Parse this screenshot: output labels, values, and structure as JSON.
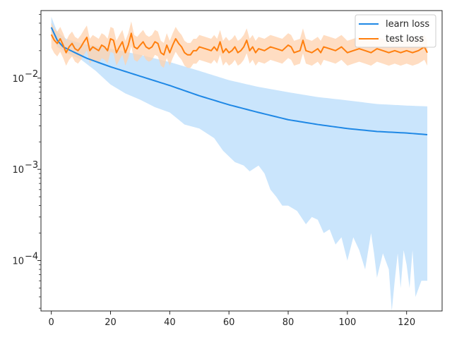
{
  "chart_data": {
    "type": "line",
    "title": "",
    "xlabel": "",
    "ylabel": "",
    "yscale": "log",
    "xlim": [
      -3.5,
      132
    ],
    "ylim": [
      2.8e-05,
      0.055
    ],
    "x_ticks": [
      0,
      20,
      40,
      60,
      80,
      100,
      120
    ],
    "x_tick_labels": [
      "0",
      "20",
      "40",
      "60",
      "80",
      "100",
      "120"
    ],
    "y_ticks": [
      0.0001,
      0.001,
      0.01
    ],
    "y_tick_labels": [
      "10",
      "10",
      "10"
    ],
    "y_tick_exponents": [
      "−4",
      "−3",
      "−2"
    ],
    "grid": false,
    "legend_position": "top-right",
    "x_range": [
      0,
      127
    ],
    "series": [
      {
        "name": "learn loss",
        "color": "#1f88e5",
        "band_color": "#9ecffa",
        "center_points": [
          [
            0,
            0.036
          ],
          [
            2,
            0.026
          ],
          [
            4,
            0.022
          ],
          [
            8,
            0.019
          ],
          [
            12,
            0.0165
          ],
          [
            16,
            0.0148
          ],
          [
            20,
            0.0133
          ],
          [
            30,
            0.0105
          ],
          [
            40,
            0.0083
          ],
          [
            50,
            0.0064
          ],
          [
            60,
            0.0051
          ],
          [
            70,
            0.0042
          ],
          [
            80,
            0.0035
          ],
          [
            90,
            0.0031
          ],
          [
            100,
            0.0028
          ],
          [
            110,
            0.0026
          ],
          [
            120,
            0.0025
          ],
          [
            127,
            0.0024
          ]
        ],
        "upper_points": [
          [
            0,
            0.047
          ],
          [
            2,
            0.032
          ],
          [
            5,
            0.027
          ],
          [
            10,
            0.024
          ],
          [
            20,
            0.021
          ],
          [
            30,
            0.018
          ],
          [
            40,
            0.015
          ],
          [
            50,
            0.012
          ],
          [
            60,
            0.0095
          ],
          [
            70,
            0.008
          ],
          [
            80,
            0.007
          ],
          [
            90,
            0.0062
          ],
          [
            100,
            0.0057
          ],
          [
            110,
            0.0052
          ],
          [
            120,
            0.005
          ],
          [
            127,
            0.0049
          ]
        ],
        "lower_points": [
          [
            0,
            0.03
          ],
          [
            2,
            0.022
          ],
          [
            5,
            0.019
          ],
          [
            10,
            0.016
          ],
          [
            15,
            0.012
          ],
          [
            20,
            0.0085
          ],
          [
            25,
            0.0068
          ],
          [
            30,
            0.0058
          ],
          [
            35,
            0.0048
          ],
          [
            40,
            0.0042
          ],
          [
            45,
            0.0031
          ],
          [
            50,
            0.0028
          ],
          [
            55,
            0.0022
          ],
          [
            58,
            0.0016
          ],
          [
            62,
            0.0012
          ],
          [
            65,
            0.0011
          ],
          [
            67,
            0.00095
          ],
          [
            70,
            0.0011
          ],
          [
            72,
            0.0009
          ],
          [
            74,
            0.0006
          ],
          [
            76,
            0.0005
          ],
          [
            78,
            0.0004
          ],
          [
            80,
            0.0004
          ],
          [
            83,
            0.00035
          ],
          [
            86,
            0.00025
          ],
          [
            88,
            0.0003
          ],
          [
            90,
            0.00028
          ],
          [
            92,
            0.0002
          ],
          [
            94,
            0.00022
          ],
          [
            96,
            0.00015
          ],
          [
            98,
            0.00018
          ],
          [
            100,
            0.0001
          ],
          [
            102,
            0.00018
          ],
          [
            104,
            0.00013
          ],
          [
            106,
            8e-05
          ],
          [
            108,
            0.0002
          ],
          [
            109,
            0.00012
          ],
          [
            110,
            6.5e-05
          ],
          [
            112,
            0.00012
          ],
          [
            114,
            8e-05
          ],
          [
            115,
            2.8e-05
          ],
          [
            116,
            6e-05
          ],
          [
            117,
            0.00012
          ],
          [
            118,
            5e-05
          ],
          [
            119,
            0.00013
          ],
          [
            120,
            9e-05
          ],
          [
            121,
            5e-05
          ],
          [
            122,
            0.00013
          ],
          [
            123,
            4e-05
          ],
          [
            125,
            6e-05
          ],
          [
            127,
            6e-05
          ]
        ]
      },
      {
        "name": "test loss",
        "color": "#ff7f0e",
        "band_color": "#ffd2ad",
        "center_points": [
          [
            0,
            0.03
          ],
          [
            1,
            0.026
          ],
          [
            2,
            0.024
          ],
          [
            3,
            0.027
          ],
          [
            4,
            0.023
          ],
          [
            5,
            0.019
          ],
          [
            6,
            0.022
          ],
          [
            7,
            0.024
          ],
          [
            8,
            0.021
          ],
          [
            9,
            0.02
          ],
          [
            10,
            0.022
          ],
          [
            11,
            0.025
          ],
          [
            12,
            0.028
          ],
          [
            13,
            0.02
          ],
          [
            14,
            0.022
          ],
          [
            15,
            0.021
          ],
          [
            16,
            0.02
          ],
          [
            17,
            0.023
          ],
          [
            18,
            0.022
          ],
          [
            19,
            0.02
          ],
          [
            20,
            0.027
          ],
          [
            21,
            0.026
          ],
          [
            22,
            0.019
          ],
          [
            23,
            0.022
          ],
          [
            24,
            0.025
          ],
          [
            25,
            0.019
          ],
          [
            26,
            0.023
          ],
          [
            27,
            0.031
          ],
          [
            28,
            0.022
          ],
          [
            29,
            0.021
          ],
          [
            30,
            0.023
          ],
          [
            31,
            0.025
          ],
          [
            32,
            0.022
          ],
          [
            33,
            0.021
          ],
          [
            34,
            0.022
          ],
          [
            35,
            0.025
          ],
          [
            36,
            0.024
          ],
          [
            37,
            0.019
          ],
          [
            38,
            0.018
          ],
          [
            39,
            0.023
          ],
          [
            40,
            0.019
          ],
          [
            41,
            0.023
          ],
          [
            42,
            0.027
          ],
          [
            43,
            0.024
          ],
          [
            44,
            0.022
          ],
          [
            45,
            0.019
          ],
          [
            46,
            0.018
          ],
          [
            47,
            0.018
          ],
          [
            48,
            0.02
          ],
          [
            49,
            0.02
          ],
          [
            50,
            0.022
          ],
          [
            52,
            0.021
          ],
          [
            54,
            0.02
          ],
          [
            55,
            0.022
          ],
          [
            56,
            0.02
          ],
          [
            57,
            0.025
          ],
          [
            58,
            0.019
          ],
          [
            59,
            0.021
          ],
          [
            60,
            0.019
          ],
          [
            61,
            0.02
          ],
          [
            62,
            0.022
          ],
          [
            63,
            0.019
          ],
          [
            64,
            0.02
          ],
          [
            65,
            0.022
          ],
          [
            66,
            0.026
          ],
          [
            67,
            0.02
          ],
          [
            68,
            0.022
          ],
          [
            69,
            0.019
          ],
          [
            70,
            0.021
          ],
          [
            72,
            0.02
          ],
          [
            74,
            0.022
          ],
          [
            76,
            0.021
          ],
          [
            78,
            0.02
          ],
          [
            80,
            0.023
          ],
          [
            81,
            0.022
          ],
          [
            82,
            0.019
          ],
          [
            84,
            0.02
          ],
          [
            85,
            0.026
          ],
          [
            86,
            0.02
          ],
          [
            88,
            0.019
          ],
          [
            90,
            0.021
          ],
          [
            91,
            0.019
          ],
          [
            92,
            0.022
          ],
          [
            94,
            0.021
          ],
          [
            96,
            0.02
          ],
          [
            98,
            0.022
          ],
          [
            100,
            0.019
          ],
          [
            102,
            0.02
          ],
          [
            104,
            0.021
          ],
          [
            106,
            0.02
          ],
          [
            108,
            0.019
          ],
          [
            110,
            0.021
          ],
          [
            112,
            0.02
          ],
          [
            114,
            0.019
          ],
          [
            116,
            0.02
          ],
          [
            118,
            0.019
          ],
          [
            120,
            0.02
          ],
          [
            122,
            0.019
          ],
          [
            124,
            0.02
          ],
          [
            126,
            0.022
          ],
          [
            127,
            0.019
          ]
        ],
        "band_ratio_upper": 1.35,
        "band_ratio_lower": 0.72
      }
    ]
  },
  "legend": {
    "items": [
      {
        "label": "learn loss",
        "color": "#1f88e5"
      },
      {
        "label": "test loss",
        "color": "#ff7f0e"
      }
    ]
  }
}
